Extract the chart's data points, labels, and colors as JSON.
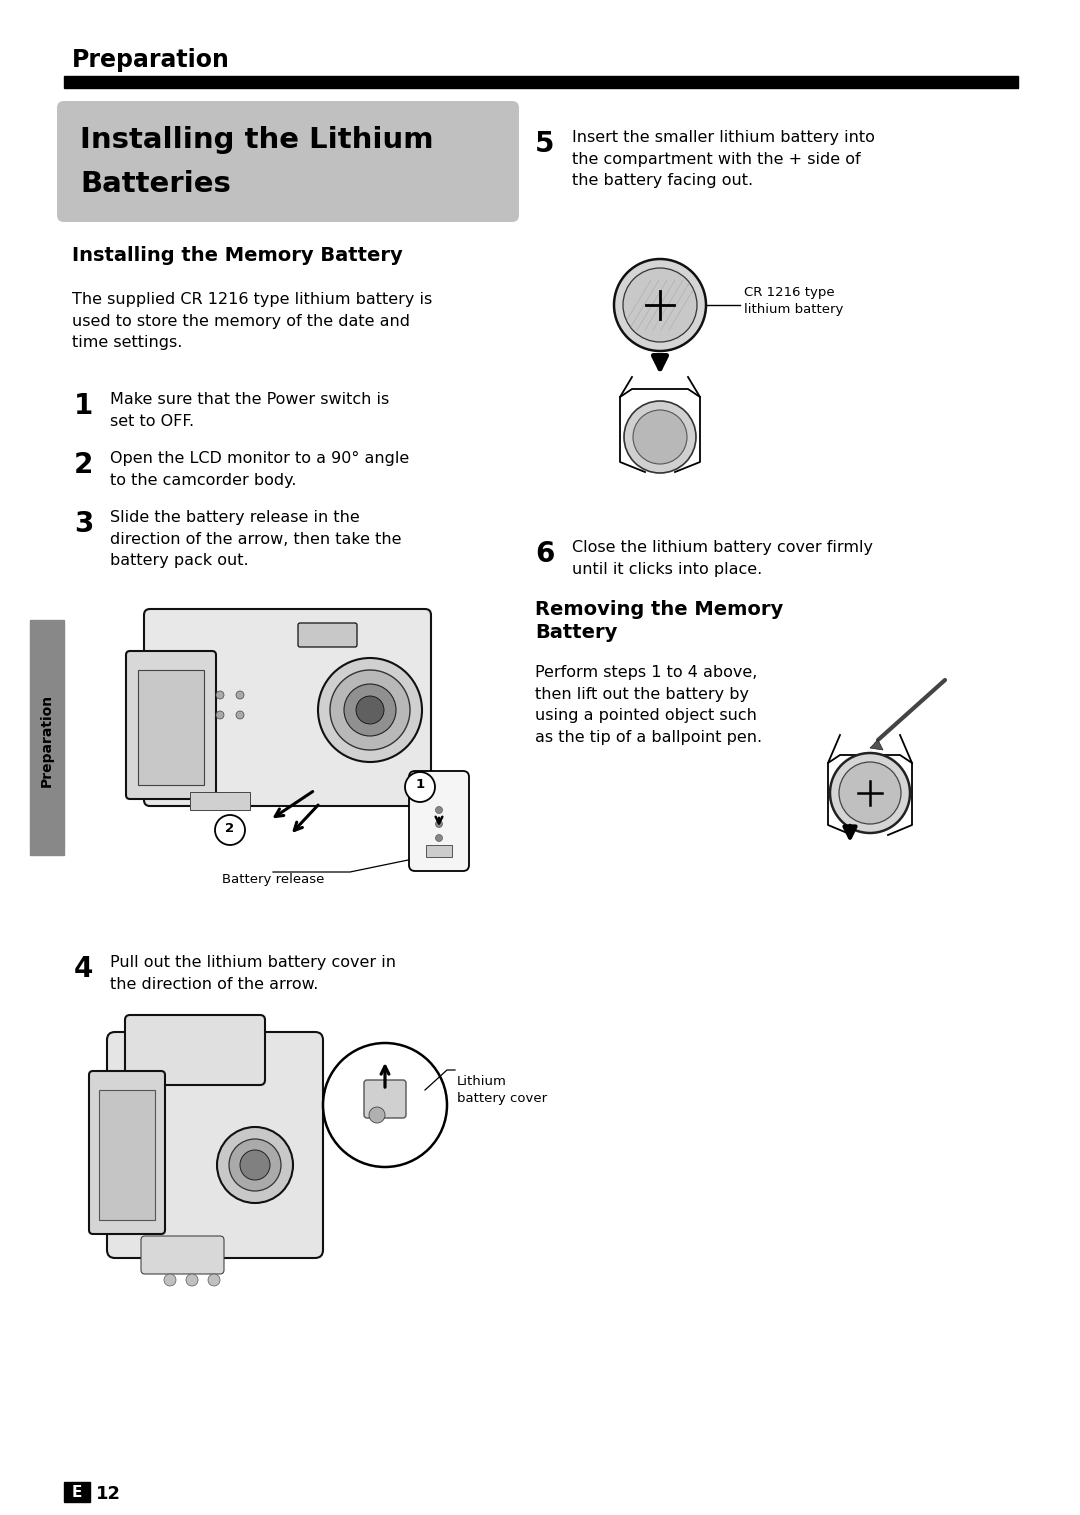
{
  "page_title": "Preparation",
  "section_title_line1": "Installing the Lithium",
  "section_title_line2": "Batteries",
  "section_title_bg": "#c0c0c0",
  "subsection1_title": "Installing the Memory Battery",
  "subsection2_title": "Removing the Memory\nBattery",
  "body_text1": "The supplied CR 1216 type lithium battery is\nused to store the memory of the date and\ntime settings.",
  "step1_text": "Make sure that the Power switch is\nset to OFF.",
  "step2_text": "Open the LCD monitor to a 90° angle\nto the camcorder body.",
  "step3_text": "Slide the battery release in the\ndirection of the arrow, then take the\nbattery pack out.",
  "step3_caption": "Battery release",
  "step4_text": "Pull out the lithium battery cover in\nthe direction of the arrow.",
  "step4_caption": "Lithium\nbattery cover",
  "step5_text": "Insert the smaller lithium battery into\nthe compartment with the + side of\nthe battery facing out.",
  "step5_caption": "CR 1216 type\nlithium battery",
  "step6_text": "Close the lithium battery cover firmly\nuntil it clicks into place.",
  "removing_text": "Perform steps 1 to 4 above,\nthen lift out the battery by\nusing a pointed object such\nas the tip of a ballpoint pen.",
  "sidebar_label": "Preparation",
  "page_num": "12",
  "bg_color": "#ffffff",
  "text_color": "#000000",
  "sidebar_color": "#888888",
  "title_box_color": "#c0c0c0",
  "lw": 1.2
}
